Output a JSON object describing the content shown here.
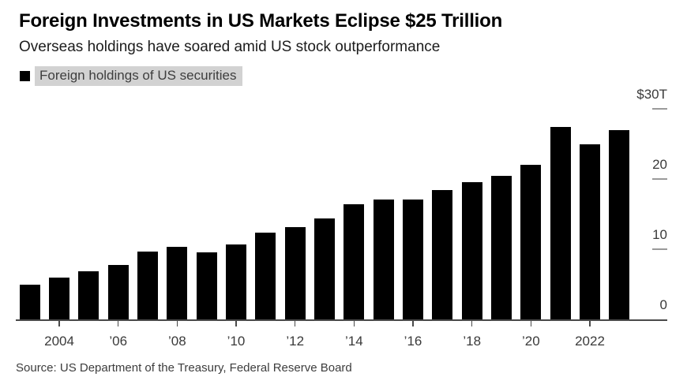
{
  "header": {
    "title": "Foreign Investments in US Markets Eclipse $25 Trillion",
    "subtitle": "Overseas holdings have soared amid US stock outperformance"
  },
  "legend": {
    "label": "Foreign holdings of US securities",
    "swatch_color": "#000000",
    "highlight_color": "#d2d2d2",
    "text_color": "#3e3e3e"
  },
  "chart_data": {
    "type": "bar",
    "title": "Foreign Investments in US Markets Eclipse $25 Trillion",
    "subtitle": "Overseas holdings have soared amid US stock outperformance",
    "series_name": "Foreign holdings of US securities",
    "unit": "trillions of US dollars",
    "x": [
      2003,
      2004,
      2005,
      2006,
      2007,
      2008,
      2009,
      2010,
      2011,
      2012,
      2013,
      2014,
      2015,
      2016,
      2017,
      2018,
      2019,
      2020,
      2021,
      2022,
      2023
    ],
    "values": [
      4.9,
      6.0,
      6.8,
      7.7,
      9.7,
      10.3,
      9.6,
      10.7,
      12.4,
      13.2,
      14.4,
      16.4,
      17.1,
      17.1,
      18.4,
      19.5,
      20.5,
      22.0,
      27.4,
      25.0,
      27.0
    ],
    "ylim": [
      0,
      30
    ],
    "yticks": [
      {
        "value": 30,
        "label": "$30T"
      },
      {
        "value": 20,
        "label": "20"
      },
      {
        "value": 10,
        "label": "10"
      },
      {
        "value": 0,
        "label": "0"
      }
    ],
    "xticks": [
      {
        "year": 2004,
        "label": "2004"
      },
      {
        "year": 2006,
        "label": "’06"
      },
      {
        "year": 2008,
        "label": "’08"
      },
      {
        "year": 2010,
        "label": "’10"
      },
      {
        "year": 2012,
        "label": "’12"
      },
      {
        "year": 2014,
        "label": "’14"
      },
      {
        "year": 2016,
        "label": "’16"
      },
      {
        "year": 2018,
        "label": "’18"
      },
      {
        "year": 2020,
        "label": "’20"
      },
      {
        "year": 2022,
        "label": "2022"
      }
    ],
    "bar_color": "#000000",
    "grid": "right-side tick dashes only",
    "legend_position": "top-left"
  },
  "footer": {
    "source": "Source: US Department of the Treasury, Federal Reserve Board"
  }
}
